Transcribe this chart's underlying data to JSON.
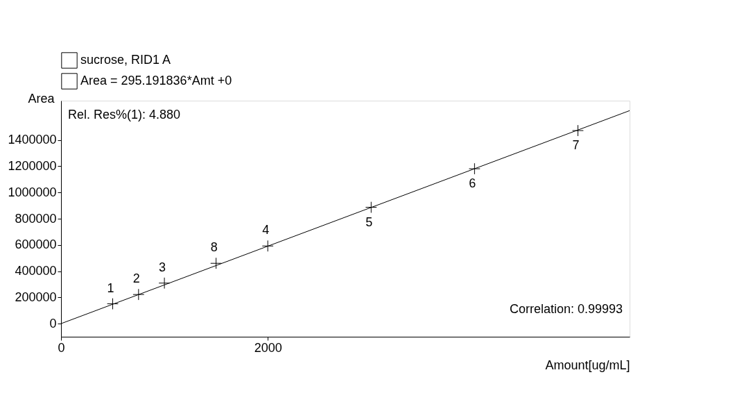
{
  "chart_data": {
    "type": "scatter",
    "xlabel": "Amount[ug/mL]",
    "ylabel": "Area",
    "xlim": [
      0,
      5500
    ],
    "xticks": [
      0,
      2000
    ],
    "ylim": [
      -100000,
      1700000
    ],
    "yticks": [
      0,
      200000,
      400000,
      600000,
      800000,
      1000000,
      1200000,
      1400000
    ],
    "grid": false,
    "legend": "top left",
    "series": [
      {
        "name": "sucrose, RID1 A",
        "color": "#000000",
        "type": "scatter",
        "marker": "cross",
        "x": [
          500,
          750,
          1000,
          1500,
          2000,
          3000,
          4000,
          5000
        ],
        "values": [
          151000,
          222000,
          309000,
          460000,
          592000,
          887000,
          1181000,
          1472000
        ]
      },
      {
        "name": "Area = 295.191836*Amt +0",
        "color": "#000000",
        "type": "line",
        "line_style": "solid",
        "x": [
          0,
          5500
        ],
        "values": [
          0,
          1624000
        ]
      }
    ],
    "annotations": [
      "Rel. Res%(1): 4.880",
      "Correlation: 0.99993",
      {
        "text": "1",
        "x": 500,
        "y": 151000
      },
      {
        "text": "2",
        "x": 750,
        "y": 222000
      },
      {
        "text": "3",
        "x": 1000,
        "y": 309000
      },
      {
        "text": "8",
        "x": 1500,
        "y": 460000
      },
      {
        "text": "4",
        "x": 2000,
        "y": 592000
      },
      {
        "text": "5",
        "x": 3000,
        "y": 887000
      },
      {
        "text": "6",
        "x": 4000,
        "y": 1181000
      },
      {
        "text": "7",
        "x": 5000,
        "y": 1472000
      }
    ]
  }
}
